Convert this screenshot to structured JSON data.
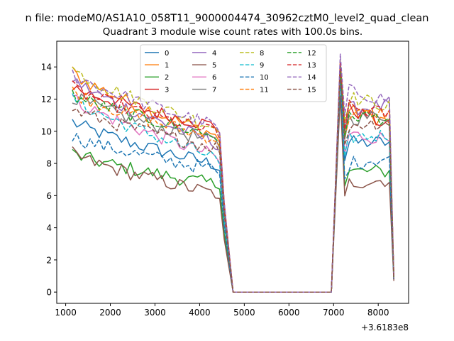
{
  "figure": {
    "suptitle": "n file: modeM0/AS1A10_058T11_9000004474_30962cztM0_level2_quad_clean",
    "title": "Quadrant 3 module wise count rates with 100.0s bins.",
    "offset_label": "+3.6183e8"
  },
  "chart_data": {
    "type": "line",
    "title": "Quadrant 3 module wise count rates with 100.0s bins.",
    "xlabel": "",
    "ylabel": "",
    "x_offset": 361830000,
    "xlim": [
      800,
      8680
    ],
    "ylim": [
      -0.7,
      15.6
    ],
    "xticks": [
      1000,
      2000,
      3000,
      4000,
      5000,
      6000,
      7000,
      8000
    ],
    "yticks": [
      0,
      2,
      4,
      6,
      8,
      10,
      12,
      14
    ],
    "grid": false,
    "legend": {
      "placement": "upper center",
      "columns": 4
    },
    "segments": [
      {
        "x_start": 1150,
        "x_step": 100,
        "count": 35
      },
      {
        "x_start": 4750,
        "x_step": 100,
        "count": 23,
        "value": 0
      },
      {
        "x_start": 7150,
        "x_step": 100,
        "count": 13
      }
    ],
    "series": [
      {
        "name": "0",
        "color": "#1f77b4",
        "dash": "solid",
        "a0": 10.6,
        "a1": 7.8,
        "peak": 13.6,
        "b0": 9.3,
        "b1": 9.3,
        "end": 0.8
      },
      {
        "name": "1",
        "color": "#ff7f0e",
        "dash": "solid",
        "a0": 13.7,
        "a1": 9.6,
        "peak": 14.3,
        "b0": 11.3,
        "b1": 10.5,
        "end": 0.9
      },
      {
        "name": "2",
        "color": "#2ca02c",
        "dash": "solid",
        "a0": 8.6,
        "a1": 6.6,
        "peak": 13.5,
        "b0": 7.5,
        "b1": 7.5,
        "end": 0.8
      },
      {
        "name": "3",
        "color": "#d62728",
        "dash": "solid",
        "a0": 12.8,
        "a1": 10.2,
        "peak": 14.2,
        "b0": 11.4,
        "b1": 10.2,
        "end": 0.9
      },
      {
        "name": "4",
        "color": "#9467bd",
        "dash": "solid",
        "a0": 13.3,
        "a1": 9.1,
        "peak": 14.2,
        "b0": 11.4,
        "b1": 11.6,
        "end": 0.8
      },
      {
        "name": "5",
        "color": "#8c564b",
        "dash": "solid",
        "a0": 8.6,
        "a1": 6.0,
        "peak": 12.2,
        "b0": 6.8,
        "b1": 7.0,
        "end": 0.7
      },
      {
        "name": "6",
        "color": "#e377c2",
        "dash": "solid",
        "a0": 12.1,
        "a1": 8.3,
        "peak": 13.7,
        "b0": 9.8,
        "b1": 9.5,
        "end": 0.8
      },
      {
        "name": "7",
        "color": "#7f7f7f",
        "dash": "solid",
        "a0": 12.2,
        "a1": 9.2,
        "peak": 13.9,
        "b0": 10.8,
        "b1": 11.0,
        "end": 0.8
      },
      {
        "name": "8",
        "color": "#bcbd22",
        "dash": "dashed",
        "a0": 13.9,
        "a1": 10.1,
        "peak": 14.4,
        "b0": 12.1,
        "b1": 11.5,
        "end": 0.9
      },
      {
        "name": "9",
        "color": "#17becf",
        "dash": "dashed",
        "a0": 12.1,
        "a1": 8.2,
        "peak": 13.4,
        "b0": 9.6,
        "b1": 9.8,
        "end": 0.8
      },
      {
        "name": "10",
        "color": "#1f77b4",
        "dash": "dashed",
        "a0": 9.7,
        "a1": 7.5,
        "peak": 13.4,
        "b0": 8.0,
        "b1": 8.4,
        "end": 0.8
      },
      {
        "name": "11",
        "color": "#ff7f0e",
        "dash": "dashed",
        "a0": 12.5,
        "a1": 9.4,
        "peak": 14.0,
        "b0": 11.0,
        "b1": 11.2,
        "end": 0.9
      },
      {
        "name": "12",
        "color": "#2ca02c",
        "dash": "dashed",
        "a0": 12.3,
        "a1": 9.6,
        "peak": 14.1,
        "b0": 11.0,
        "b1": 10.8,
        "end": 0.9
      },
      {
        "name": "13",
        "color": "#d62728",
        "dash": "dashed",
        "a0": 12.7,
        "a1": 9.8,
        "peak": 14.3,
        "b0": 11.5,
        "b1": 11.0,
        "end": 0.9
      },
      {
        "name": "14",
        "color": "#9467bd",
        "dash": "dashed",
        "a0": 13.6,
        "a1": 10.2,
        "peak": 14.8,
        "b0": 12.5,
        "b1": 11.9,
        "end": 0.9
      },
      {
        "name": "15",
        "color": "#8c564b",
        "dash": "dashed",
        "a0": 11.4,
        "a1": 8.9,
        "peak": 13.8,
        "b0": 10.4,
        "b1": 10.6,
        "end": 0.8
      }
    ]
  }
}
